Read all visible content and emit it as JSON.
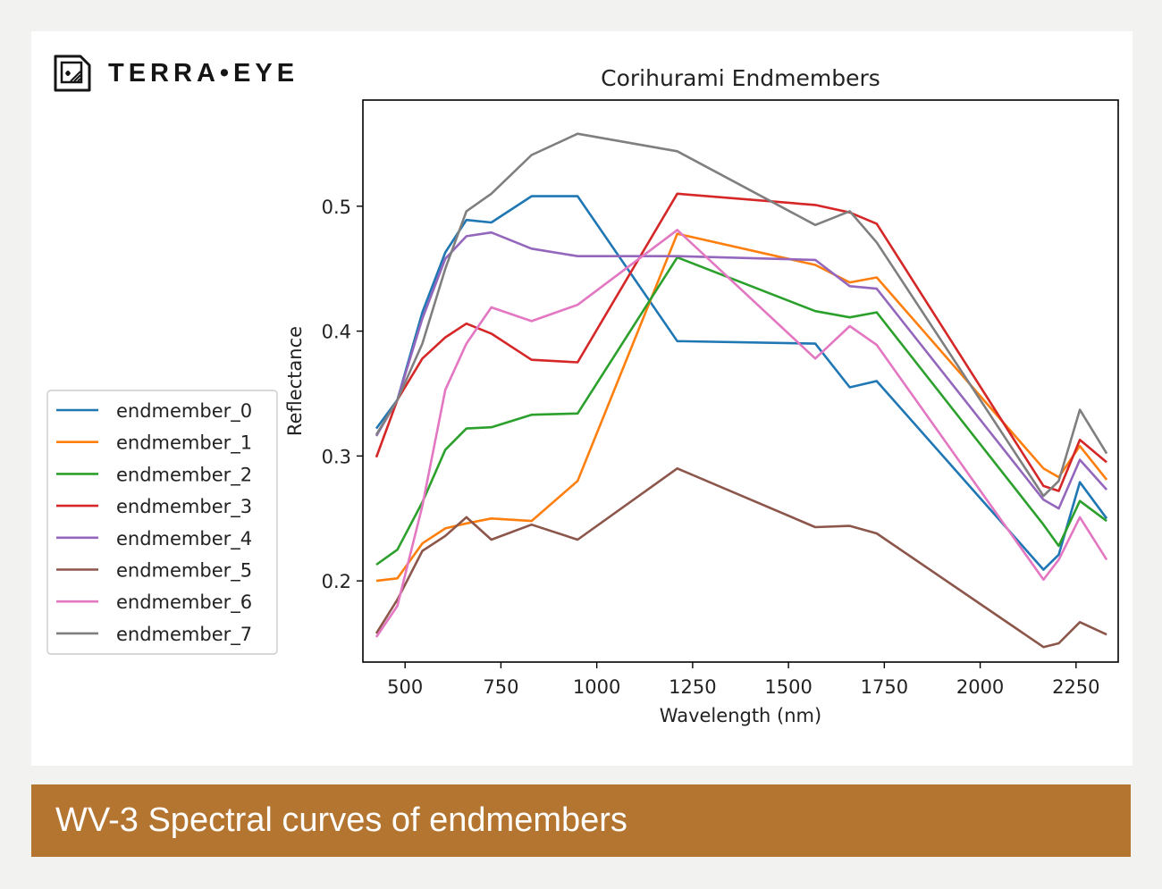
{
  "brand": {
    "name": "TERRA•EYE"
  },
  "caption": "WV-3 Spectral curves of endmembers",
  "chart_data": {
    "type": "line",
    "title": "Corihurami Endmembers",
    "xlabel": "Wavelength (nm)",
    "ylabel": "Reflectance",
    "xlim": [
      390,
      2360
    ],
    "ylim": [
      0.135,
      0.585
    ],
    "xticks": [
      500,
      750,
      1000,
      1250,
      1500,
      1750,
      2000,
      2250
    ],
    "xtick_labels": [
      "500",
      "750",
      "1000",
      "1250",
      "1500",
      "1750",
      "2000",
      "2250"
    ],
    "yticks": [
      0.2,
      0.3,
      0.4,
      0.5
    ],
    "ytick_labels": [
      "0.2",
      "0.3",
      "0.4",
      "0.5"
    ],
    "legend_position": "left, outside the axes",
    "x": [
      425,
      480,
      545,
      605,
      660,
      725,
      830,
      950,
      1210,
      1570,
      1660,
      1730,
      2165,
      2205,
      2260,
      2330
    ],
    "series": [
      {
        "name": "endmember_0",
        "color": "#1f77b4",
        "values": [
          0.322,
          0.345,
          0.415,
          0.463,
          0.489,
          0.487,
          0.508,
          0.508,
          0.392,
          0.39,
          0.355,
          0.36,
          0.209,
          0.221,
          0.279,
          0.25
        ]
      },
      {
        "name": "endmember_1",
        "color": "#ff7f0e",
        "values": [
          0.2,
          0.202,
          0.23,
          0.242,
          0.246,
          0.25,
          0.248,
          0.28,
          0.478,
          0.453,
          0.439,
          0.443,
          0.29,
          0.283,
          0.308,
          0.281
        ]
      },
      {
        "name": "endmember_2",
        "color": "#2ca02c",
        "values": [
          0.213,
          0.225,
          0.263,
          0.305,
          0.322,
          0.323,
          0.333,
          0.334,
          0.459,
          0.416,
          0.411,
          0.415,
          0.245,
          0.228,
          0.264,
          0.248
        ]
      },
      {
        "name": "endmember_3",
        "color": "#d62728",
        "values": [
          0.299,
          0.345,
          0.378,
          0.395,
          0.406,
          0.398,
          0.377,
          0.375,
          0.51,
          0.501,
          0.495,
          0.486,
          0.276,
          0.272,
          0.313,
          0.295
        ]
      },
      {
        "name": "endmember_4",
        "color": "#9467bd",
        "values": [
          0.316,
          0.345,
          0.41,
          0.458,
          0.476,
          0.479,
          0.466,
          0.46,
          0.46,
          0.457,
          0.436,
          0.434,
          0.265,
          0.258,
          0.297,
          0.273
        ]
      },
      {
        "name": "endmember_5",
        "color": "#8c564b",
        "values": [
          0.158,
          0.185,
          0.224,
          0.236,
          0.251,
          0.233,
          0.245,
          0.233,
          0.29,
          0.243,
          0.244,
          0.238,
          0.147,
          0.15,
          0.167,
          0.157
        ]
      },
      {
        "name": "endmember_6",
        "color": "#e377c2",
        "values": [
          0.155,
          0.18,
          0.26,
          0.353,
          0.39,
          0.419,
          0.408,
          0.421,
          0.481,
          0.378,
          0.404,
          0.389,
          0.201,
          0.217,
          0.251,
          0.217
        ]
      },
      {
        "name": "endmember_7",
        "color": "#7f7f7f",
        "values": [
          0.317,
          0.345,
          0.39,
          0.45,
          0.496,
          0.51,
          0.541,
          0.558,
          0.544,
          0.485,
          0.496,
          0.471,
          0.268,
          0.28,
          0.337,
          0.302
        ]
      }
    ]
  }
}
